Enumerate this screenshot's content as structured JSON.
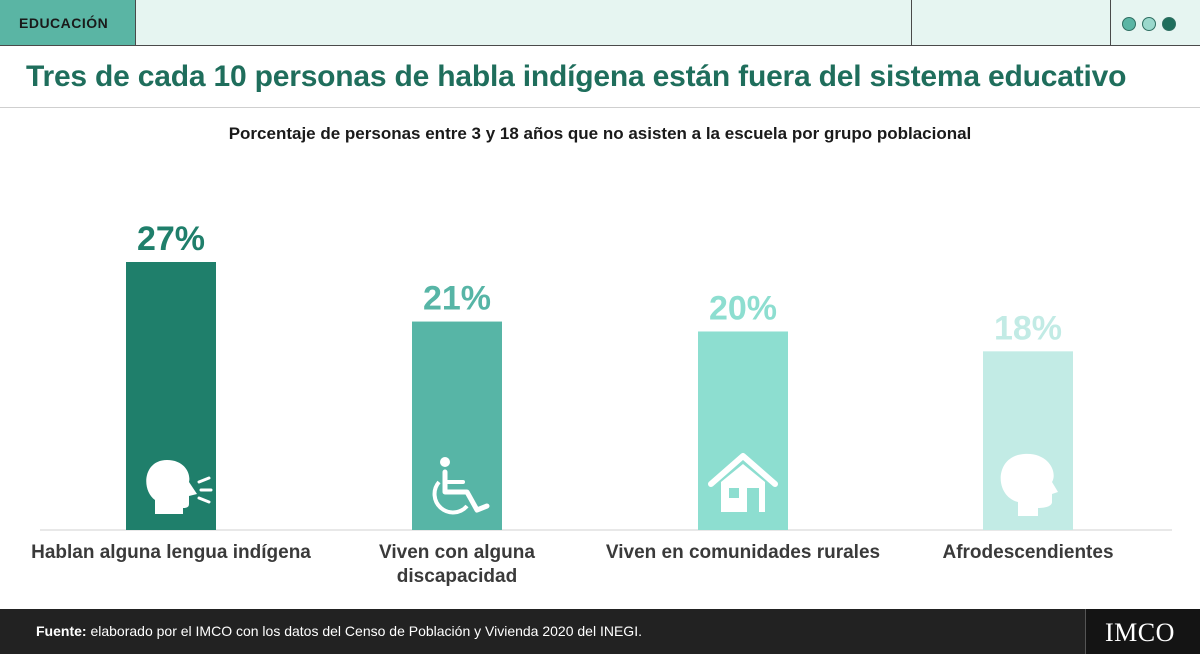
{
  "header": {
    "section": "EDUCACIÓN"
  },
  "title": "Tres de cada 10 personas de habla indígena están fuera del sistema educativo",
  "footer": {
    "source_label": "Fuente:",
    "source_text": "elaborado por el IMCO con los datos del Censo de Población y Vivienda 2020 del INEGI.",
    "logo": "IMCO"
  },
  "colors": {
    "header_bg": "#e6f5f1",
    "section_tag": "#5ab5a4",
    "title": "#1f6e5c",
    "footer_bg": "#222222"
  },
  "chart_data": {
    "type": "bar",
    "title": "Porcentaje de personas entre 3 y 18 años que no asisten a la escuela por grupo poblacional",
    "categories": [
      "Hablan alguna lengua indígena",
      "Viven con alguna discapacidad",
      "Viven en comunidades rurales",
      "Afrodescendientes"
    ],
    "values": [
      27,
      21,
      20,
      18
    ],
    "value_labels": [
      "27%",
      "21%",
      "20%",
      "18%"
    ],
    "unit": "%",
    "ylim": [
      0,
      27
    ],
    "grid": false,
    "bar_colors": [
      "#1f7f6b",
      "#57b5a6",
      "#8dded0",
      "#c2ebe5"
    ],
    "label_colors": [
      "#1f7f6b",
      "#57b5a6",
      "#8dded0",
      "#c2ebe5"
    ],
    "icons": [
      "speaking-head-icon",
      "wheelchair-icon",
      "house-icon",
      "person-profile-icon"
    ]
  }
}
